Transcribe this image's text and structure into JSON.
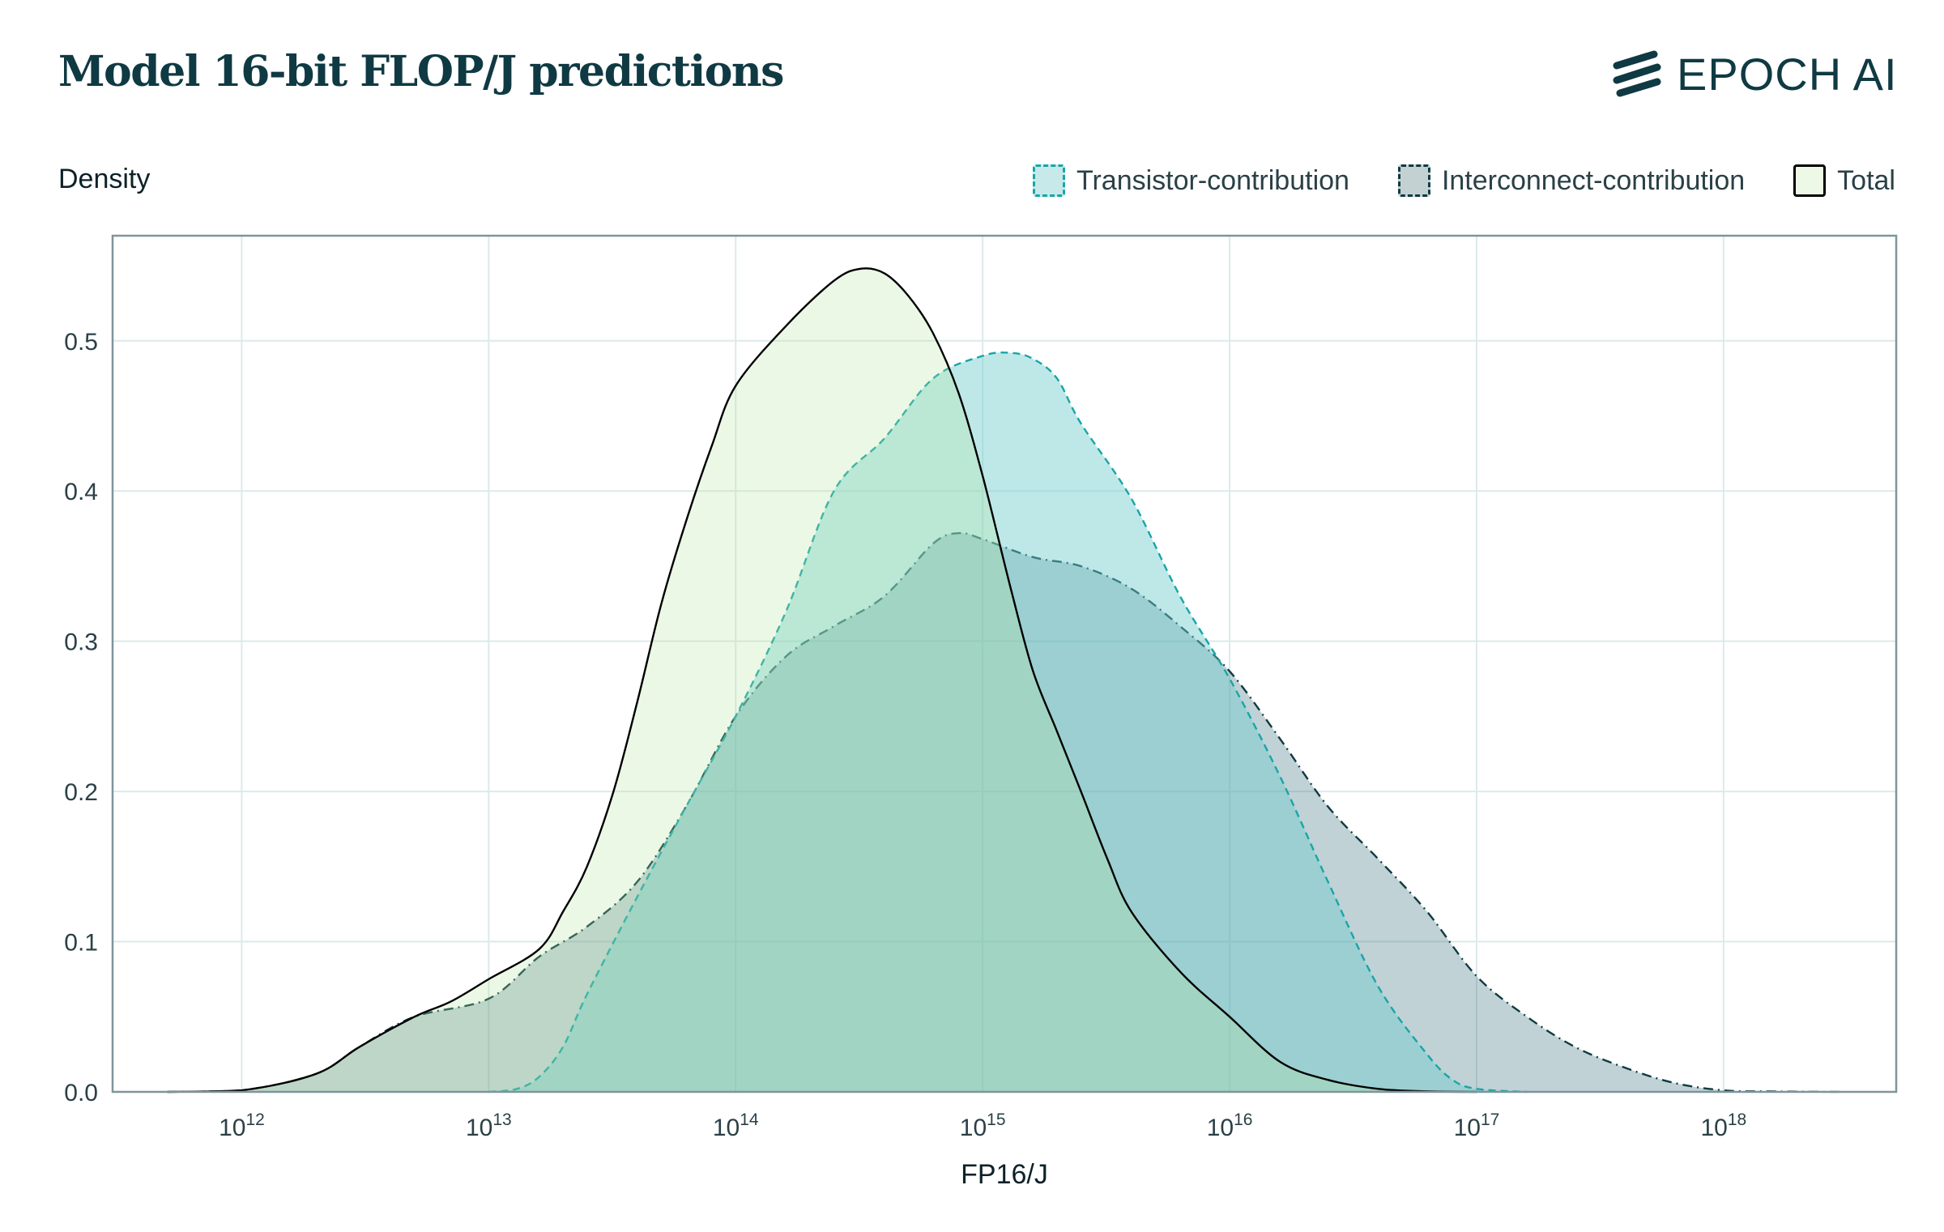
{
  "chart_data": {
    "type": "area",
    "title": "Model 16-bit FLOP/J predictions",
    "xlabel": "FP16/J",
    "ylabel": "Density",
    "x_scale": "log",
    "xlim": [
      300000000000.0,
      5e+18
    ],
    "ylim": [
      0,
      0.57
    ],
    "x_ticks": [
      {
        "value": 1000000000000.0,
        "base": "10",
        "exp": "12"
      },
      {
        "value": 10000000000000.0,
        "base": "10",
        "exp": "13"
      },
      {
        "value": 100000000000000.0,
        "base": "10",
        "exp": "14"
      },
      {
        "value": 1000000000000000.0,
        "base": "10",
        "exp": "15"
      },
      {
        "value": 1e+16,
        "base": "10",
        "exp": "16"
      },
      {
        "value": 1e+17,
        "base": "10",
        "exp": "17"
      },
      {
        "value": 1e+18,
        "base": "10",
        "exp": "18"
      }
    ],
    "y_ticks": [
      {
        "value": 0,
        "label": "0.0"
      },
      {
        "value": 0.1,
        "label": "0.1"
      },
      {
        "value": 0.2,
        "label": "0.2"
      },
      {
        "value": 0.3,
        "label": "0.3"
      },
      {
        "value": 0.4,
        "label": "0.4"
      },
      {
        "value": 0.5,
        "label": "0.5"
      }
    ],
    "grid": true,
    "legend_position": "top-right",
    "series": [
      {
        "name": "Interconnect-contribution",
        "line_style": "dash-dot",
        "stroke": "#0e3b40",
        "fill": "#2d6a78",
        "fill_opacity": 0.3,
        "points": [
          [
            500000000000.0,
            0
          ],
          [
            1000000000000.0,
            0.001
          ],
          [
            2000000000000.0,
            0.012
          ],
          [
            3000000000000.0,
            0.03
          ],
          [
            5000000000000.0,
            0.05
          ],
          [
            10000000000000.0,
            0.062
          ],
          [
            16000000000000.0,
            0.09
          ],
          [
            25000000000000.0,
            0.11
          ],
          [
            40000000000000.0,
            0.14
          ],
          [
            63000000000000.0,
            0.19
          ],
          [
            100000000000000.0,
            0.25
          ],
          [
            160000000000000.0,
            0.29
          ],
          [
            250000000000000.0,
            0.31
          ],
          [
            400000000000000.0,
            0.33
          ],
          [
            630000000000000.0,
            0.365
          ],
          [
            800000000000000.0,
            0.372
          ],
          [
            1000000000000000.0,
            0.368
          ],
          [
            1600000000000000.0,
            0.356
          ],
          [
            2500000000000000.0,
            0.35
          ],
          [
            4000000000000000.0,
            0.335
          ],
          [
            6300000000000000.0,
            0.31
          ],
          [
            1e+16,
            0.28
          ],
          [
            1.6e+16,
            0.235
          ],
          [
            2.5e+16,
            0.19
          ],
          [
            4e+16,
            0.155
          ],
          [
            6.3e+16,
            0.12
          ],
          [
            1e+17,
            0.077
          ],
          [
            1.6e+17,
            0.05
          ],
          [
            2.5e+17,
            0.03
          ],
          [
            4e+17,
            0.016
          ],
          [
            6.3e+17,
            0.006
          ],
          [
            1e+18,
            0.001
          ],
          [
            1.6e+18,
            0.0003
          ],
          [
            3e+18,
            0
          ]
        ]
      },
      {
        "name": "Transistor-contribution",
        "line_style": "dashed",
        "stroke": "#18a5a7",
        "fill": "#6fcdcd",
        "fill_opacity": 0.45,
        "points": [
          [
            10000000000000.0,
            0
          ],
          [
            13000000000000.0,
            0.002
          ],
          [
            16000000000000.0,
            0.01
          ],
          [
            20000000000000.0,
            0.03
          ],
          [
            25000000000000.0,
            0.065
          ],
          [
            40000000000000.0,
            0.13
          ],
          [
            63000000000000.0,
            0.19
          ],
          [
            100000000000000.0,
            0.25
          ],
          [
            160000000000000.0,
            0.32
          ],
          [
            250000000000000.0,
            0.4
          ],
          [
            400000000000000.0,
            0.435
          ],
          [
            630000000000000.0,
            0.475
          ],
          [
            1000000000000000.0,
            0.49
          ],
          [
            1300000000000000.0,
            0.492
          ],
          [
            1600000000000000.0,
            0.488
          ],
          [
            2000000000000000.0,
            0.475
          ],
          [
            2500000000000000.0,
            0.445
          ],
          [
            4000000000000000.0,
            0.395
          ],
          [
            6300000000000000.0,
            0.33
          ],
          [
            1e+16,
            0.275
          ],
          [
            1.6e+16,
            0.21
          ],
          [
            2.5e+16,
            0.14
          ],
          [
            4e+16,
            0.07
          ],
          [
            6.3e+16,
            0.025
          ],
          [
            8e+16,
            0.008
          ],
          [
            1e+17,
            0.002
          ],
          [
            1.6e+17,
            0
          ]
        ]
      },
      {
        "name": "Total",
        "line_style": "solid",
        "stroke": "#000000",
        "fill": "#b2e39c",
        "fill_opacity": 0.25,
        "points": [
          [
            500000000000.0,
            0
          ],
          [
            1000000000000.0,
            0.001
          ],
          [
            2000000000000.0,
            0.012
          ],
          [
            3000000000000.0,
            0.03
          ],
          [
            5000000000000.0,
            0.05
          ],
          [
            7000000000000.0,
            0.06
          ],
          [
            10000000000000.0,
            0.075
          ],
          [
            16000000000000.0,
            0.095
          ],
          [
            20000000000000.0,
            0.12
          ],
          [
            25000000000000.0,
            0.15
          ],
          [
            32000000000000.0,
            0.2
          ],
          [
            40000000000000.0,
            0.26
          ],
          [
            50000000000000.0,
            0.325
          ],
          [
            63000000000000.0,
            0.38
          ],
          [
            80000000000000.0,
            0.43
          ],
          [
            100000000000000.0,
            0.47
          ],
          [
            160000000000000.0,
            0.51
          ],
          [
            250000000000000.0,
            0.54
          ],
          [
            320000000000000.0,
            0.548
          ],
          [
            400000000000000.0,
            0.545
          ],
          [
            500000000000000.0,
            0.53
          ],
          [
            630000000000000.0,
            0.505
          ],
          [
            800000000000000.0,
            0.465
          ],
          [
            1000000000000000.0,
            0.41
          ],
          [
            1300000000000000.0,
            0.335
          ],
          [
            1600000000000000.0,
            0.28
          ],
          [
            2000000000000000.0,
            0.24
          ],
          [
            2500000000000000.0,
            0.2
          ],
          [
            3200000000000000.0,
            0.155
          ],
          [
            4000000000000000.0,
            0.12
          ],
          [
            6300000000000000.0,
            0.08
          ],
          [
            1e+16,
            0.05
          ],
          [
            1.6e+16,
            0.02
          ],
          [
            2.5e+16,
            0.008
          ],
          [
            4e+16,
            0.002
          ],
          [
            6.3e+16,
            0.0004
          ],
          [
            1e+17,
            0
          ]
        ]
      }
    ]
  },
  "header": {
    "title": "Model 16-bit FLOP/J predictions",
    "brand": "EPOCH AI",
    "brand_icon": "epoch-logo-icon"
  },
  "legend": [
    {
      "label": "Transistor-contribution",
      "fill": "#c7e9e9",
      "stroke": "#18a5a7",
      "border_style": "dashed"
    },
    {
      "label": "Interconnect-contribution",
      "fill": "#c3d1d3",
      "stroke": "#0e3b40",
      "border_style": "dashed"
    },
    {
      "label": "Total",
      "fill": "#eef8e6",
      "stroke": "#000000",
      "border_style": "solid"
    }
  ],
  "colors": {
    "text": "#0f3a43",
    "axis": "#7e959b",
    "grid": "#dde9ea"
  }
}
